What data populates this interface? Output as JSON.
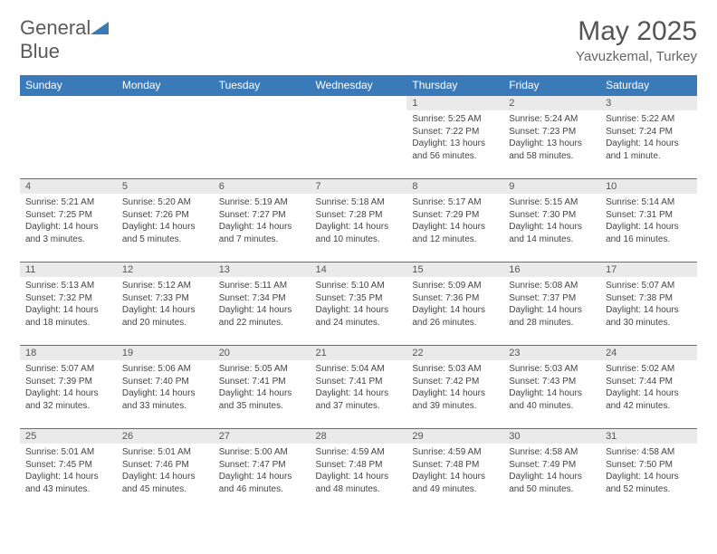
{
  "brand": {
    "general": "General",
    "blue": "Blue"
  },
  "title": "May 2025",
  "subtitle": "Yavuzkemal, Turkey",
  "colors": {
    "accent": "#3a7ab8",
    "daynum_bg": "#eaeaea",
    "text": "#444444"
  },
  "day_headers": [
    "Sunday",
    "Monday",
    "Tuesday",
    "Wednesday",
    "Thursday",
    "Friday",
    "Saturday"
  ],
  "weeks": [
    [
      null,
      null,
      null,
      null,
      {
        "n": "1",
        "sr": "5:25 AM",
        "ss": "7:22 PM",
        "dl": "13 hours and 56 minutes."
      },
      {
        "n": "2",
        "sr": "5:24 AM",
        "ss": "7:23 PM",
        "dl": "13 hours and 58 minutes."
      },
      {
        "n": "3",
        "sr": "5:22 AM",
        "ss": "7:24 PM",
        "dl": "14 hours and 1 minute."
      }
    ],
    [
      {
        "n": "4",
        "sr": "5:21 AM",
        "ss": "7:25 PM",
        "dl": "14 hours and 3 minutes."
      },
      {
        "n": "5",
        "sr": "5:20 AM",
        "ss": "7:26 PM",
        "dl": "14 hours and 5 minutes."
      },
      {
        "n": "6",
        "sr": "5:19 AM",
        "ss": "7:27 PM",
        "dl": "14 hours and 7 minutes."
      },
      {
        "n": "7",
        "sr": "5:18 AM",
        "ss": "7:28 PM",
        "dl": "14 hours and 10 minutes."
      },
      {
        "n": "8",
        "sr": "5:17 AM",
        "ss": "7:29 PM",
        "dl": "14 hours and 12 minutes."
      },
      {
        "n": "9",
        "sr": "5:15 AM",
        "ss": "7:30 PM",
        "dl": "14 hours and 14 minutes."
      },
      {
        "n": "10",
        "sr": "5:14 AM",
        "ss": "7:31 PM",
        "dl": "14 hours and 16 minutes."
      }
    ],
    [
      {
        "n": "11",
        "sr": "5:13 AM",
        "ss": "7:32 PM",
        "dl": "14 hours and 18 minutes."
      },
      {
        "n": "12",
        "sr": "5:12 AM",
        "ss": "7:33 PM",
        "dl": "14 hours and 20 minutes."
      },
      {
        "n": "13",
        "sr": "5:11 AM",
        "ss": "7:34 PM",
        "dl": "14 hours and 22 minutes."
      },
      {
        "n": "14",
        "sr": "5:10 AM",
        "ss": "7:35 PM",
        "dl": "14 hours and 24 minutes."
      },
      {
        "n": "15",
        "sr": "5:09 AM",
        "ss": "7:36 PM",
        "dl": "14 hours and 26 minutes."
      },
      {
        "n": "16",
        "sr": "5:08 AM",
        "ss": "7:37 PM",
        "dl": "14 hours and 28 minutes."
      },
      {
        "n": "17",
        "sr": "5:07 AM",
        "ss": "7:38 PM",
        "dl": "14 hours and 30 minutes."
      }
    ],
    [
      {
        "n": "18",
        "sr": "5:07 AM",
        "ss": "7:39 PM",
        "dl": "14 hours and 32 minutes."
      },
      {
        "n": "19",
        "sr": "5:06 AM",
        "ss": "7:40 PM",
        "dl": "14 hours and 33 minutes."
      },
      {
        "n": "20",
        "sr": "5:05 AM",
        "ss": "7:41 PM",
        "dl": "14 hours and 35 minutes."
      },
      {
        "n": "21",
        "sr": "5:04 AM",
        "ss": "7:41 PM",
        "dl": "14 hours and 37 minutes."
      },
      {
        "n": "22",
        "sr": "5:03 AM",
        "ss": "7:42 PM",
        "dl": "14 hours and 39 minutes."
      },
      {
        "n": "23",
        "sr": "5:03 AM",
        "ss": "7:43 PM",
        "dl": "14 hours and 40 minutes."
      },
      {
        "n": "24",
        "sr": "5:02 AM",
        "ss": "7:44 PM",
        "dl": "14 hours and 42 minutes."
      }
    ],
    [
      {
        "n": "25",
        "sr": "5:01 AM",
        "ss": "7:45 PM",
        "dl": "14 hours and 43 minutes."
      },
      {
        "n": "26",
        "sr": "5:01 AM",
        "ss": "7:46 PM",
        "dl": "14 hours and 45 minutes."
      },
      {
        "n": "27",
        "sr": "5:00 AM",
        "ss": "7:47 PM",
        "dl": "14 hours and 46 minutes."
      },
      {
        "n": "28",
        "sr": "4:59 AM",
        "ss": "7:48 PM",
        "dl": "14 hours and 48 minutes."
      },
      {
        "n": "29",
        "sr": "4:59 AM",
        "ss": "7:48 PM",
        "dl": "14 hours and 49 minutes."
      },
      {
        "n": "30",
        "sr": "4:58 AM",
        "ss": "7:49 PM",
        "dl": "14 hours and 50 minutes."
      },
      {
        "n": "31",
        "sr": "4:58 AM",
        "ss": "7:50 PM",
        "dl": "14 hours and 52 minutes."
      }
    ]
  ],
  "labels": {
    "sunrise": "Sunrise: ",
    "sunset": "Sunset: ",
    "daylight": "Daylight: "
  }
}
